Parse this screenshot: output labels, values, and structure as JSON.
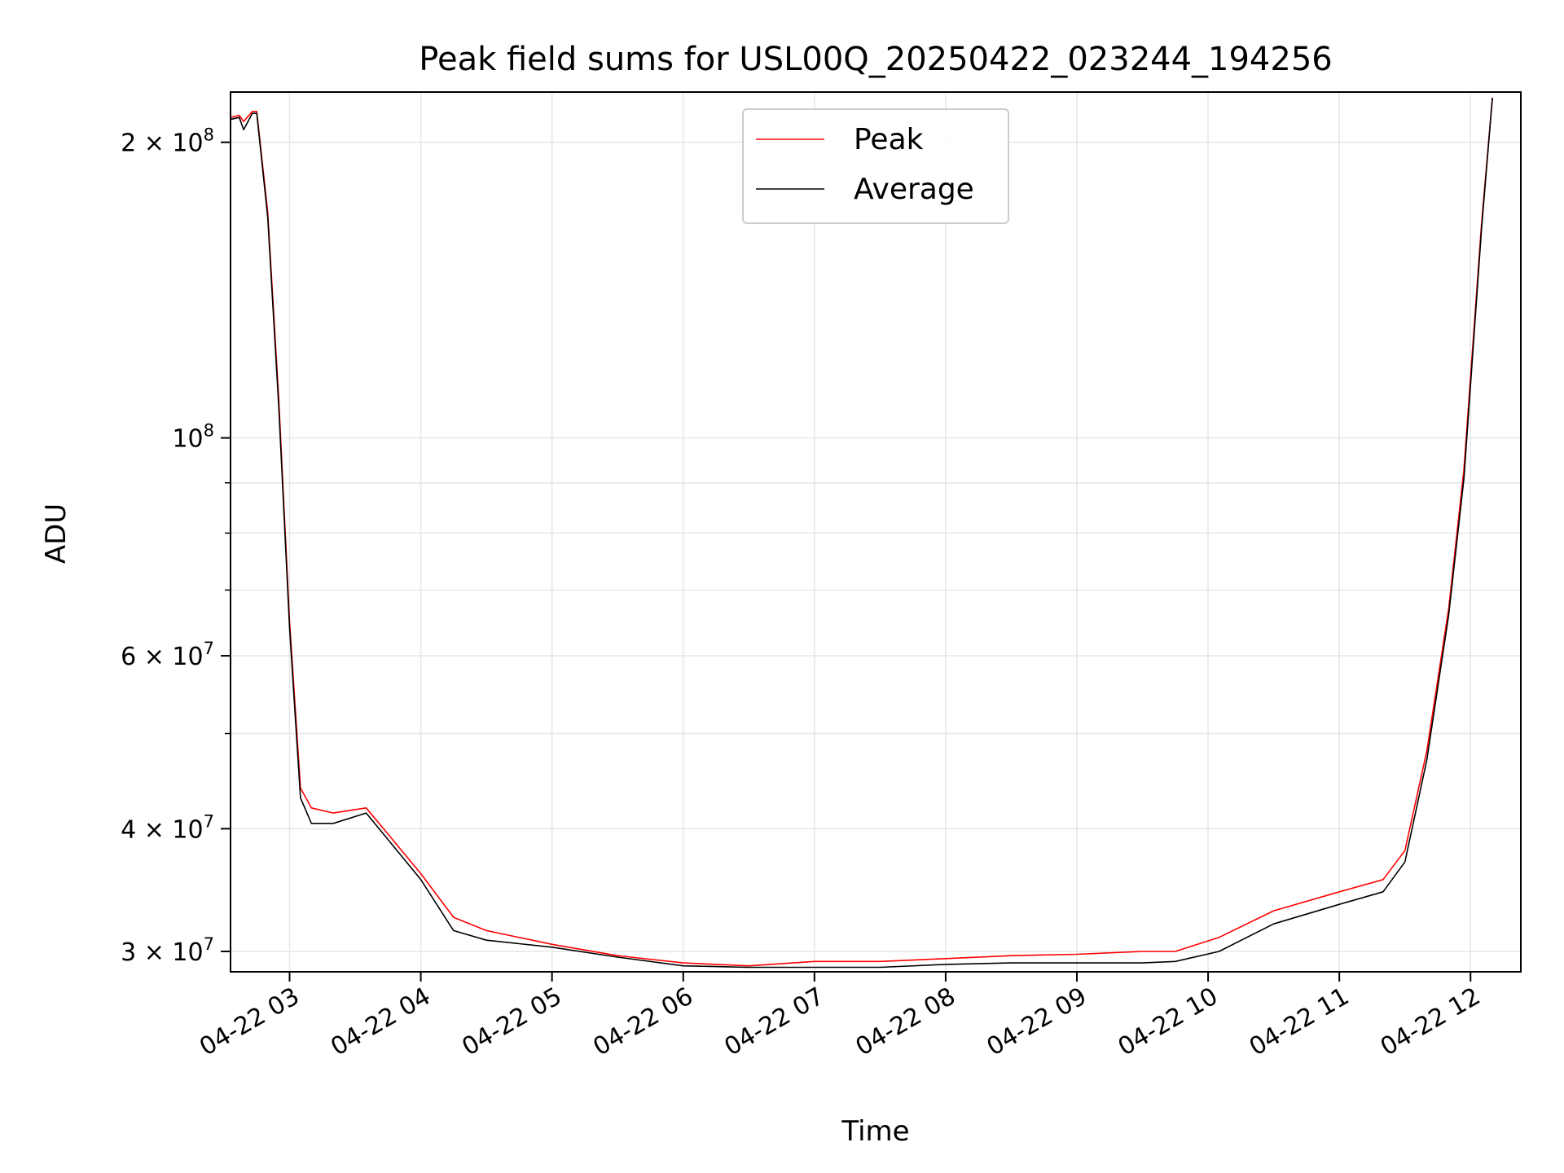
{
  "chart_data": {
    "type": "line",
    "title": "Peak field sums for USL00Q_20250422_023244_194256",
    "xlabel": "Time",
    "ylabel": "ADU",
    "xlim": [
      "2025-04-22 02:33",
      "2025-04-22 12:23"
    ],
    "ylim": [
      28600000,
      225000000
    ],
    "yscale": "log",
    "grid": true,
    "legend_position": "top-center",
    "x_ticks": [
      {
        "t": "2025-04-22 03:00",
        "label": "04-22 03"
      },
      {
        "t": "2025-04-22 04:00",
        "label": "04-22 04"
      },
      {
        "t": "2025-04-22 05:00",
        "label": "04-22 05"
      },
      {
        "t": "2025-04-22 06:00",
        "label": "04-22 06"
      },
      {
        "t": "2025-04-22 07:00",
        "label": "04-22 07"
      },
      {
        "t": "2025-04-22 08:00",
        "label": "04-22 08"
      },
      {
        "t": "2025-04-22 09:00",
        "label": "04-22 09"
      },
      {
        "t": "2025-04-22 10:00",
        "label": "04-22 10"
      },
      {
        "t": "2025-04-22 11:00",
        "label": "04-22 11"
      },
      {
        "t": "2025-04-22 12:00",
        "label": "04-22 12"
      }
    ],
    "y_major_ticks": [
      {
        "value": 30000000,
        "mantissa": "3",
        "exp": "7"
      },
      {
        "value": 40000000,
        "mantissa": "4",
        "exp": "7"
      },
      {
        "value": 60000000,
        "mantissa": "6",
        "exp": "7"
      },
      {
        "value": 100000000,
        "mantissa": "",
        "exp": "8"
      },
      {
        "value": 200000000,
        "mantissa": "2",
        "exp": "8"
      }
    ],
    "y_minor_ticks": [
      50000000,
      70000000,
      80000000,
      90000000
    ],
    "series": [
      {
        "name": "Peak",
        "color": "#ff0000",
        "x": [
          "2025-04-22 02:33",
          "2025-04-22 02:37",
          "2025-04-22 02:39",
          "2025-04-22 02:43",
          "2025-04-22 02:45",
          "2025-04-22 02:50",
          "2025-04-22 02:55",
          "2025-04-22 03:00",
          "2025-04-22 03:05",
          "2025-04-22 03:10",
          "2025-04-22 03:20",
          "2025-04-22 03:35",
          "2025-04-22 03:45",
          "2025-04-22 04:00",
          "2025-04-22 04:15",
          "2025-04-22 04:30",
          "2025-04-22 05:00",
          "2025-04-22 05:30",
          "2025-04-22 06:00",
          "2025-04-22 06:30",
          "2025-04-22 07:00",
          "2025-04-22 07:30",
          "2025-04-22 08:00",
          "2025-04-22 08:30",
          "2025-04-22 09:00",
          "2025-04-22 09:30",
          "2025-04-22 09:45",
          "2025-04-22 10:05",
          "2025-04-22 10:30",
          "2025-04-22 11:00",
          "2025-04-22 11:20",
          "2025-04-22 11:30",
          "2025-04-22 11:40",
          "2025-04-22 11:50",
          "2025-04-22 11:57",
          "2025-04-22 12:05",
          "2025-04-22 12:10"
        ],
        "values": [
          212000000,
          213000000,
          210000000,
          215000000,
          215000000,
          170000000,
          110000000,
          65000000,
          44000000,
          42000000,
          41500000,
          42000000,
          39500000,
          36000000,
          32500000,
          31500000,
          30500000,
          29700000,
          29200000,
          29000000,
          29300000,
          29300000,
          29500000,
          29700000,
          29800000,
          30000000,
          30000000,
          31000000,
          33000000,
          34500000,
          35500000,
          38000000,
          48000000,
          67000000,
          93000000,
          165000000,
          222000000
        ]
      },
      {
        "name": "Average",
        "color": "#000000",
        "x": [
          "2025-04-22 02:33",
          "2025-04-22 02:37",
          "2025-04-22 02:39",
          "2025-04-22 02:43",
          "2025-04-22 02:45",
          "2025-04-22 02:50",
          "2025-04-22 02:55",
          "2025-04-22 03:00",
          "2025-04-22 03:05",
          "2025-04-22 03:10",
          "2025-04-22 03:20",
          "2025-04-22 03:35",
          "2025-04-22 03:45",
          "2025-04-22 04:00",
          "2025-04-22 04:15",
          "2025-04-22 04:30",
          "2025-04-22 05:00",
          "2025-04-22 05:30",
          "2025-04-22 06:00",
          "2025-04-22 06:30",
          "2025-04-22 07:00",
          "2025-04-22 07:30",
          "2025-04-22 08:00",
          "2025-04-22 08:30",
          "2025-04-22 09:00",
          "2025-04-22 09:30",
          "2025-04-22 09:45",
          "2025-04-22 10:05",
          "2025-04-22 10:30",
          "2025-04-22 11:00",
          "2025-04-22 11:20",
          "2025-04-22 11:30",
          "2025-04-22 11:40",
          "2025-04-22 11:50",
          "2025-04-22 11:57",
          "2025-04-22 12:05",
          "2025-04-22 12:10"
        ],
        "values": [
          211000000,
          212000000,
          206000000,
          214000000,
          214000000,
          168000000,
          108000000,
          64000000,
          43000000,
          40500000,
          40500000,
          41500000,
          39000000,
          35500000,
          31500000,
          30800000,
          30300000,
          29600000,
          29000000,
          28900000,
          28900000,
          28900000,
          29100000,
          29200000,
          29200000,
          29200000,
          29300000,
          30000000,
          32000000,
          33500000,
          34500000,
          37000000,
          47000000,
          66000000,
          91000000,
          163000000,
          222000000
        ]
      }
    ]
  }
}
